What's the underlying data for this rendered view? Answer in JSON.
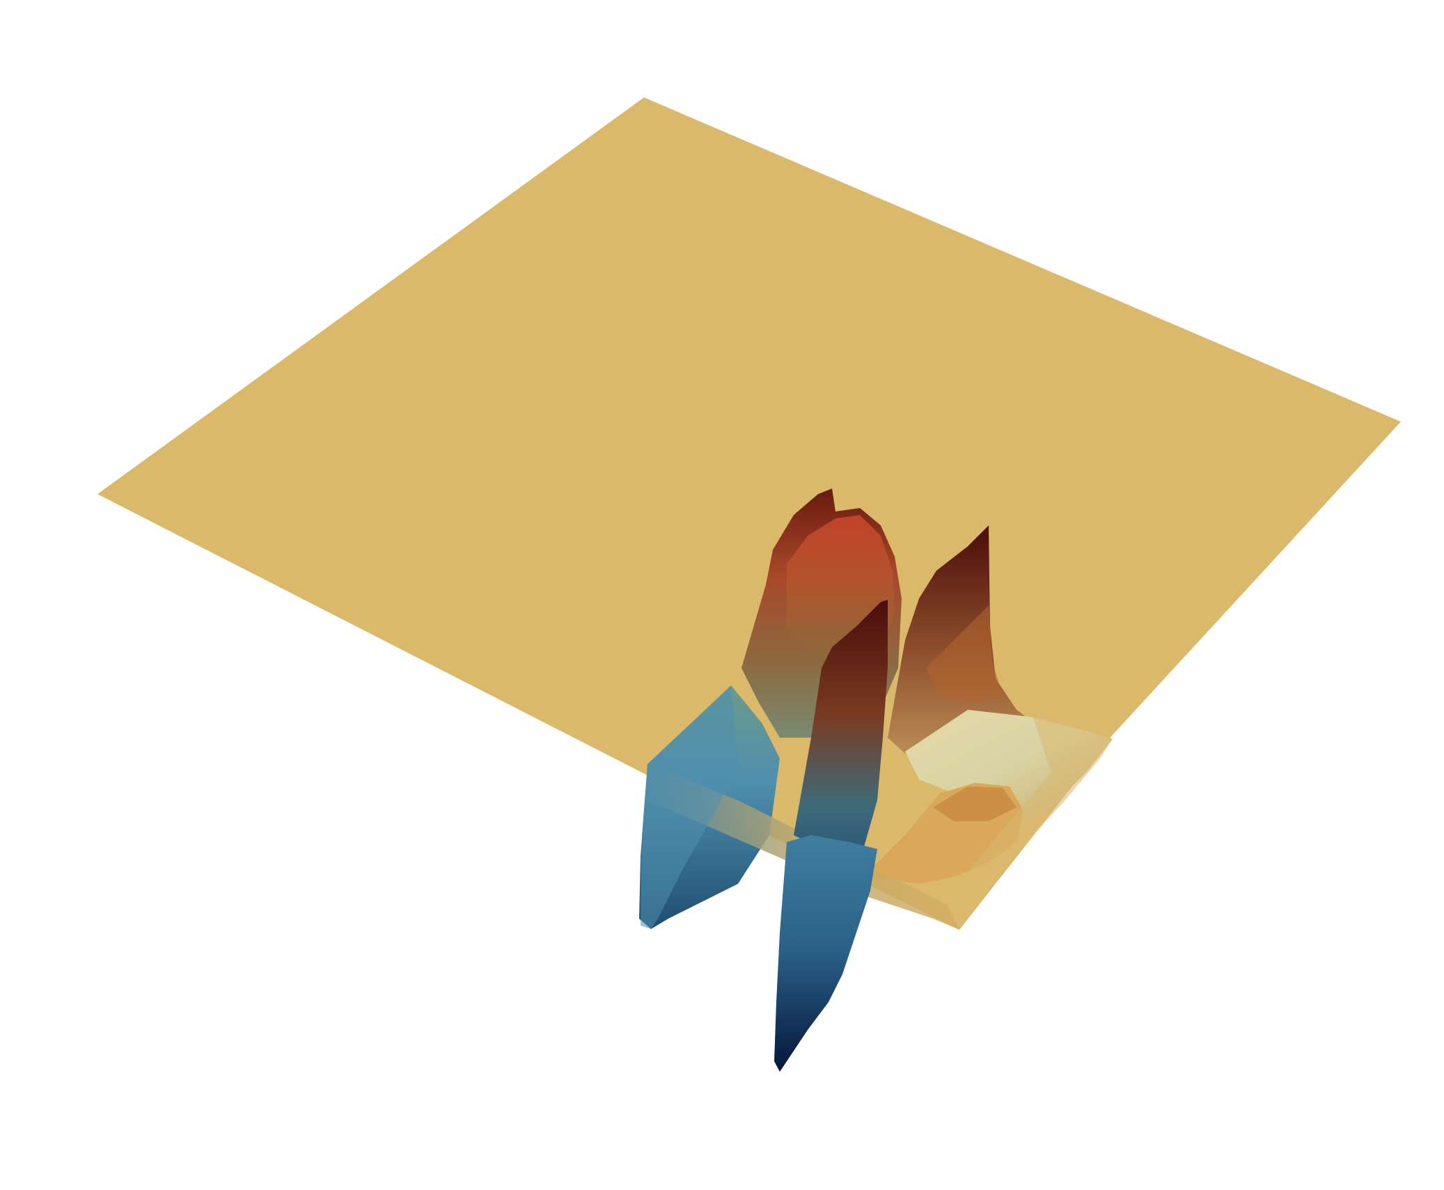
{
  "colors": {
    "background": "#ffffff",
    "plane": "#dbb96a",
    "colormap": [
      "#04163a",
      "#1f4d72",
      "#4f8fae",
      "#8fbccb",
      "#d9d4a4",
      "#e9c27a",
      "#c9712e",
      "#a23a1c",
      "#4a0d0a"
    ]
  }
}
